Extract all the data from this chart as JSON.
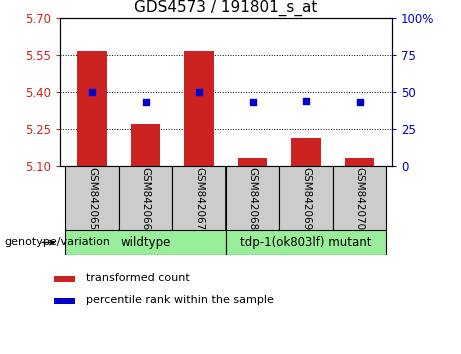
{
  "title": "GDS4573 / 191801_s_at",
  "samples": [
    "GSM842065",
    "GSM842066",
    "GSM842067",
    "GSM842068",
    "GSM842069",
    "GSM842070"
  ],
  "bar_values": [
    5.565,
    5.27,
    5.565,
    5.135,
    5.215,
    5.135
  ],
  "bar_bottom": 5.1,
  "dot_values_pct": [
    50,
    43,
    50,
    43,
    44,
    43
  ],
  "ylim": [
    5.1,
    5.7
  ],
  "y2lim": [
    0,
    100
  ],
  "yticks": [
    5.1,
    5.25,
    5.4,
    5.55,
    5.7
  ],
  "y2ticks": [
    0,
    25,
    50,
    75,
    100
  ],
  "hlines": [
    5.25,
    5.4,
    5.55
  ],
  "bar_color": "#cc2222",
  "dot_color": "#0000cc",
  "bar_width": 0.55,
  "wildtype_label": "wildtype",
  "mutant_label": "tdp-1(ok803lf) mutant",
  "genotype_label": "genotype/variation",
  "legend_bar_label": "transformed count",
  "legend_dot_label": "percentile rank within the sample",
  "bar_tick_color": "#cc2222",
  "y2tick_color": "#0000cc",
  "title_fontsize": 11,
  "tick_fontsize": 8.5,
  "sample_fontsize": 7.5,
  "geno_fontsize": 8.5,
  "legend_fontsize": 8,
  "group_box_color": "#99ee99",
  "sample_box_color": "#cccccc"
}
